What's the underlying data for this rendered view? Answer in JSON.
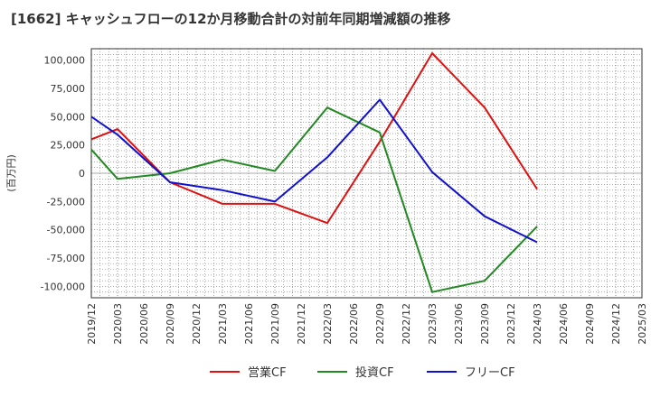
{
  "chart_data": {
    "type": "line",
    "title": "[1662]  キャッシュフローの12か月移動合計の対前年同期増減額の推移",
    "ylabel": "(百万円)",
    "xlabel": "",
    "ylim": [
      -110000,
      110000
    ],
    "yticks": [
      100000,
      75000,
      50000,
      25000,
      0,
      -25000,
      -50000,
      -75000,
      -100000
    ],
    "ytick_labels": [
      "100,000",
      "75,000",
      "50,000",
      "25,000",
      "0",
      "-25,000",
      "-50,000",
      "-75,000",
      "-100,000"
    ],
    "x_categories": [
      "2019/12",
      "2020/03",
      "2020/06",
      "2020/09",
      "2020/12",
      "2021/03",
      "2021/06",
      "2021/09",
      "2021/12",
      "2022/03",
      "2022/06",
      "2022/09",
      "2022/12",
      "2023/03",
      "2023/06",
      "2023/09",
      "2023/12",
      "2024/03",
      "2024/06",
      "2024/09",
      "2024/12",
      "2025/03"
    ],
    "grid": true,
    "legend_position": "bottom",
    "series": [
      {
        "name": "営業CF",
        "color": "#dd1111",
        "points": [
          {
            "x": "2019/12",
            "y": 30000
          },
          {
            "x": "2020/03",
            "y": 39000
          },
          {
            "x": "2020/09",
            "y": -8000
          },
          {
            "x": "2021/03",
            "y": -27000
          },
          {
            "x": "2021/09",
            "y": -27000
          },
          {
            "x": "2022/03",
            "y": -44000
          },
          {
            "x": "2022/09",
            "y": 28000
          },
          {
            "x": "2023/03",
            "y": 106000
          },
          {
            "x": "2023/09",
            "y": 58000
          },
          {
            "x": "2024/03",
            "y": -14000
          }
        ]
      },
      {
        "name": "投資CF",
        "color": "#228822",
        "points": [
          {
            "x": "2019/12",
            "y": 21000
          },
          {
            "x": "2020/03",
            "y": -5000
          },
          {
            "x": "2020/09",
            "y": 0
          },
          {
            "x": "2021/03",
            "y": 12000
          },
          {
            "x": "2021/09",
            "y": 2000
          },
          {
            "x": "2022/03",
            "y": 58000
          },
          {
            "x": "2022/09",
            "y": 36000
          },
          {
            "x": "2023/03",
            "y": -105000
          },
          {
            "x": "2023/09",
            "y": -95000
          },
          {
            "x": "2024/03",
            "y": -47000
          }
        ]
      },
      {
        "name": "フリーCF",
        "color": "#1111cc",
        "points": [
          {
            "x": "2019/12",
            "y": 50000
          },
          {
            "x": "2020/03",
            "y": 34000
          },
          {
            "x": "2020/09",
            "y": -8000
          },
          {
            "x": "2021/03",
            "y": -15000
          },
          {
            "x": "2021/09",
            "y": -25000
          },
          {
            "x": "2022/03",
            "y": 14000
          },
          {
            "x": "2022/09",
            "y": 65000
          },
          {
            "x": "2023/03",
            "y": 1000
          },
          {
            "x": "2023/09",
            "y": -38000
          },
          {
            "x": "2024/03",
            "y": -61000
          }
        ]
      }
    ]
  }
}
